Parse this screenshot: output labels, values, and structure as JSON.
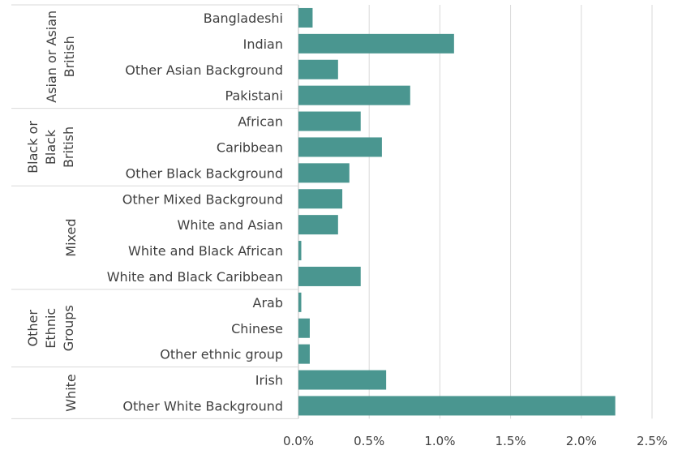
{
  "chart_data": {
    "type": "bar",
    "orientation": "horizontal",
    "title": "",
    "xlabel": "",
    "ylabel": "",
    "xlim": [
      0,
      0.025
    ],
    "x_ticks": [
      "0.0%",
      "0.5%",
      "1.0%",
      "1.5%",
      "2.0%",
      "2.5%"
    ],
    "grid": true,
    "bar_color": "#4a9690",
    "groups": [
      {
        "label": "Asian or Asian British",
        "lines": [
          "Asian or Asian",
          "British"
        ],
        "categories": [
          "Bangladeshi",
          "Indian",
          "Other Asian Background",
          "Pakistani"
        ],
        "values": [
          0.001,
          0.011,
          0.0028,
          0.0079
        ]
      },
      {
        "label": "Black or Black British",
        "lines": [
          "Black or",
          "Black",
          "British"
        ],
        "categories": [
          "African",
          "Caribbean",
          "Other Black Background"
        ],
        "values": [
          0.0044,
          0.0059,
          0.0036
        ]
      },
      {
        "label": "Mixed",
        "lines": [
          "Mixed"
        ],
        "categories": [
          "Other Mixed Background",
          "White and Asian",
          "White and Black African",
          "White and Black Caribbean"
        ],
        "values": [
          0.0031,
          0.0028,
          0.0002,
          0.0044
        ]
      },
      {
        "label": "Other Ethnic Groups",
        "lines": [
          "Other",
          "Ethnic",
          "Groups"
        ],
        "categories": [
          "Arab",
          "Chinese",
          "Other ethnic group"
        ],
        "values": [
          0.0002,
          0.0008,
          0.0008
        ]
      },
      {
        "label": "White",
        "lines": [
          "White"
        ],
        "categories": [
          "Irish",
          "Other White Background"
        ],
        "values": [
          0.0062,
          0.0224
        ]
      }
    ]
  }
}
